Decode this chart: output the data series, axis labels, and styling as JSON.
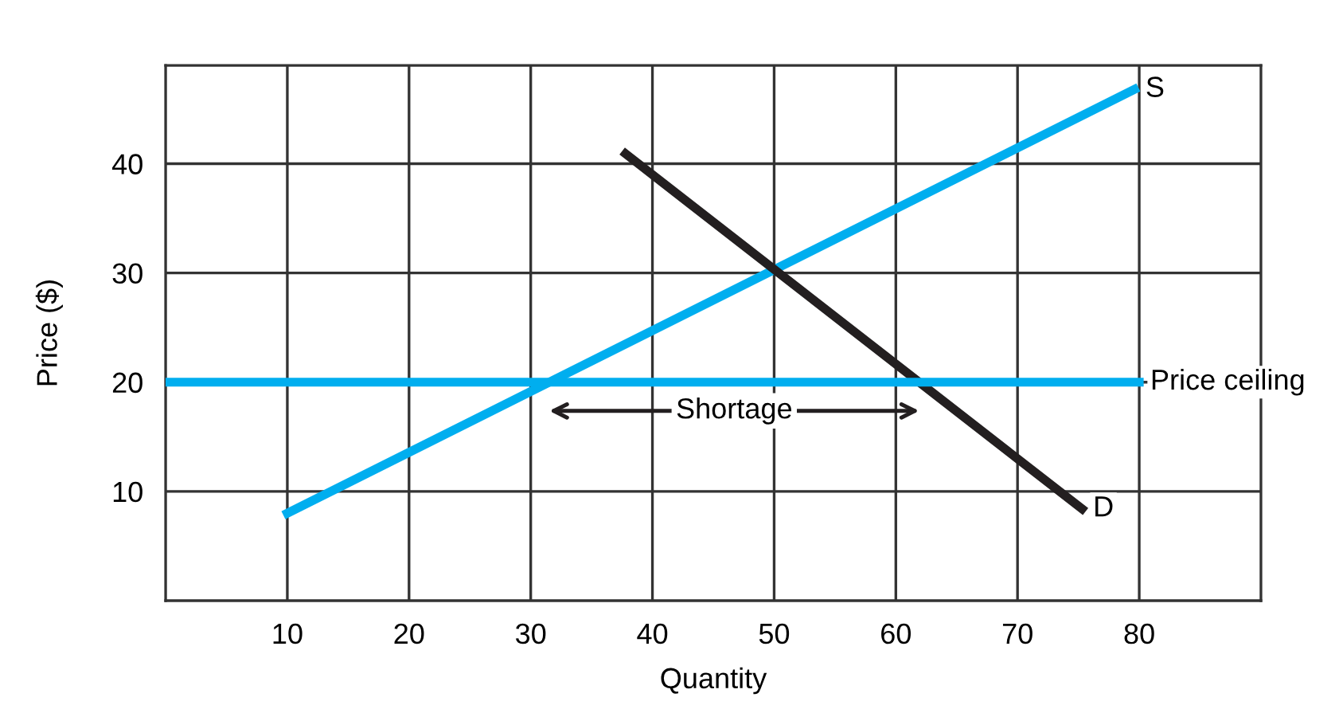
{
  "chart_data": {
    "type": "line",
    "xlabel": "Quantity",
    "ylabel": "Price ($)",
    "series": [
      {
        "name": "S",
        "color": "#00aeef",
        "x": [
          10,
          79.6
        ],
        "values": [
          8,
          46.8
        ]
      },
      {
        "name": "D",
        "color": "#231f20",
        "x": [
          37.8,
          75.3
        ],
        "values": [
          40.9,
          8.4
        ]
      },
      {
        "name": "Price ceiling",
        "color": "#00aeef",
        "x": [
          0,
          80
        ],
        "values": [
          20,
          20
        ]
      }
    ],
    "annotations": [
      "Shortage"
    ],
    "xlim": [
      0,
      90
    ],
    "ylim": [
      0,
      49
    ],
    "xticks": [
      10,
      20,
      30,
      40,
      50,
      60,
      70,
      80
    ],
    "yticks": [
      10,
      20,
      30,
      40
    ],
    "grid": true,
    "marker": "none",
    "line_style": "solid",
    "legend": false
  }
}
